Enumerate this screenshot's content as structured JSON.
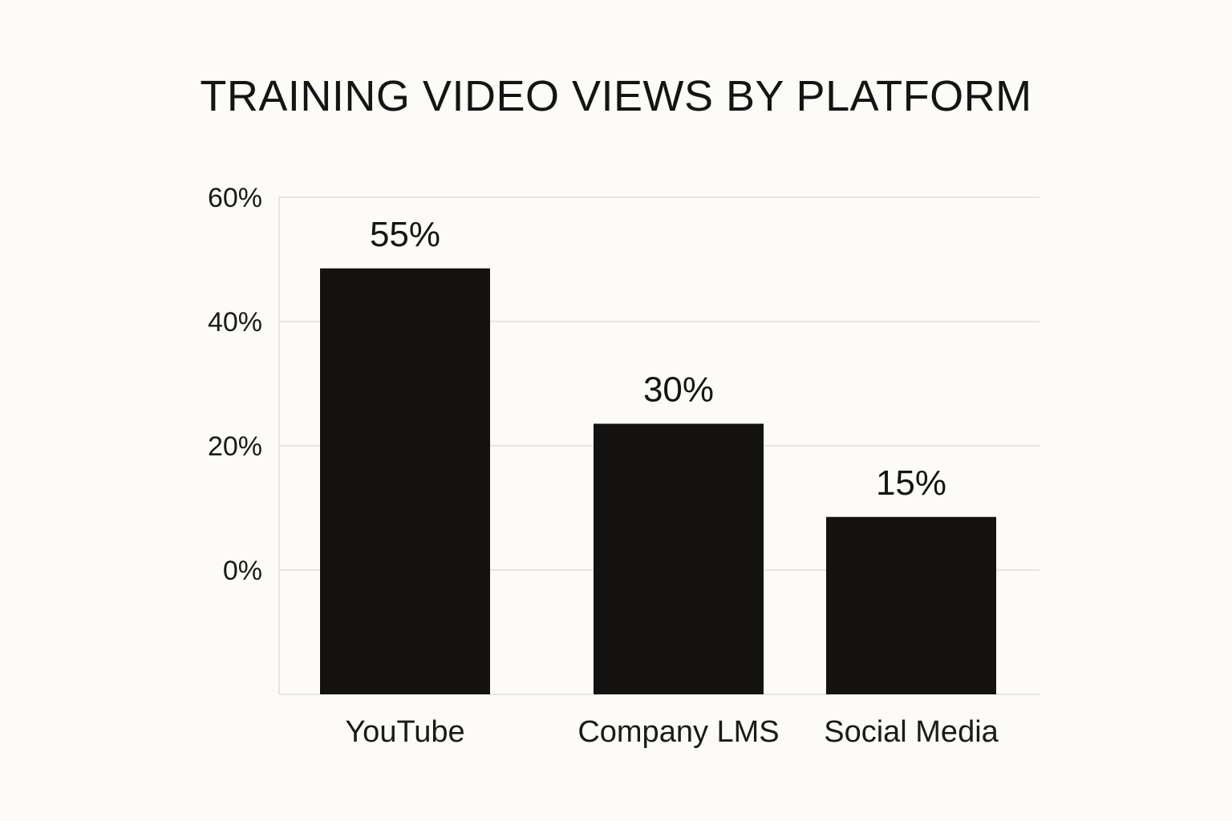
{
  "chart_data": {
    "type": "bar",
    "title": "TRAINING VIDEO VIEWS BY PLATFORM",
    "xlabel": "",
    "ylabel": "",
    "categories": [
      "YouTube",
      "Company LMS",
      "Social Media"
    ],
    "values": [
      55,
      30,
      15
    ],
    "data_labels": [
      "55%",
      "30%",
      "15%"
    ],
    "y_ticks": [
      0,
      20,
      40,
      60
    ],
    "y_tick_labels": [
      "0%",
      "20%",
      "40%",
      "60%"
    ],
    "ylim": [
      0,
      60
    ],
    "grid": true,
    "legend": "none",
    "colors": {
      "bar": "#141210",
      "grid": "#dedede",
      "text": "#141414",
      "background": "#fcfbf7"
    }
  }
}
